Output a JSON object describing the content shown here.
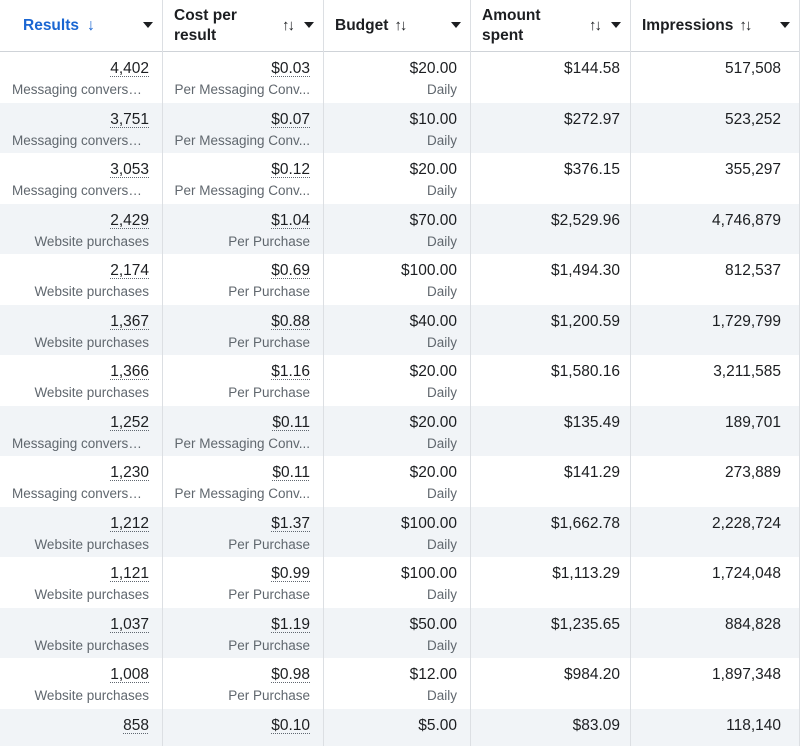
{
  "columns": {
    "results": "Results",
    "results_sort_icon": "↓",
    "cost_per_result_line1": "Cost per",
    "cost_per_result_line2": "result",
    "budget": "Budget",
    "amount_spent_line1": "Amount",
    "amount_spent_line2": "spent",
    "impressions": "Impressions",
    "sort_icon": "↑↓"
  },
  "rows": [
    {
      "results": "4,402",
      "result_type": "Messaging conversat...",
      "cost": "$0.03",
      "cost_type": "Per Messaging Conv...",
      "budget": "$20.00",
      "budget_type": "Daily",
      "amount_spent": "$144.58",
      "impressions": "517,508"
    },
    {
      "results": "3,751",
      "result_type": "Messaging conversat...",
      "cost": "$0.07",
      "cost_type": "Per Messaging Conv...",
      "budget": "$10.00",
      "budget_type": "Daily",
      "amount_spent": "$272.97",
      "impressions": "523,252"
    },
    {
      "results": "3,053",
      "result_type": "Messaging conversat...",
      "cost": "$0.12",
      "cost_type": "Per Messaging Conv...",
      "budget": "$20.00",
      "budget_type": "Daily",
      "amount_spent": "$376.15",
      "impressions": "355,297"
    },
    {
      "results": "2,429",
      "result_type": "Website purchases",
      "cost": "$1.04",
      "cost_type": "Per Purchase",
      "budget": "$70.00",
      "budget_type": "Daily",
      "amount_spent": "$2,529.96",
      "impressions": "4,746,879"
    },
    {
      "results": "2,174",
      "result_type": "Website purchases",
      "cost": "$0.69",
      "cost_type": "Per Purchase",
      "budget": "$100.00",
      "budget_type": "Daily",
      "amount_spent": "$1,494.30",
      "impressions": "812,537"
    },
    {
      "results": "1,367",
      "result_type": "Website purchases",
      "cost": "$0.88",
      "cost_type": "Per Purchase",
      "budget": "$40.00",
      "budget_type": "Daily",
      "amount_spent": "$1,200.59",
      "impressions": "1,729,799"
    },
    {
      "results": "1,366",
      "result_type": "Website purchases",
      "cost": "$1.16",
      "cost_type": "Per Purchase",
      "budget": "$20.00",
      "budget_type": "Daily",
      "amount_spent": "$1,580.16",
      "impressions": "3,211,585"
    },
    {
      "results": "1,252",
      "result_type": "Messaging conversat...",
      "cost": "$0.11",
      "cost_type": "Per Messaging Conv...",
      "budget": "$20.00",
      "budget_type": "Daily",
      "amount_spent": "$135.49",
      "impressions": "189,701"
    },
    {
      "results": "1,230",
      "result_type": "Messaging conversat...",
      "cost": "$0.11",
      "cost_type": "Per Messaging Conv...",
      "budget": "$20.00",
      "budget_type": "Daily",
      "amount_spent": "$141.29",
      "impressions": "273,889"
    },
    {
      "results": "1,212",
      "result_type": "Website purchases",
      "cost": "$1.37",
      "cost_type": "Per Purchase",
      "budget": "$100.00",
      "budget_type": "Daily",
      "amount_spent": "$1,662.78",
      "impressions": "2,228,724"
    },
    {
      "results": "1,121",
      "result_type": "Website purchases",
      "cost": "$0.99",
      "cost_type": "Per Purchase",
      "budget": "$100.00",
      "budget_type": "Daily",
      "amount_spent": "$1,113.29",
      "impressions": "1,724,048"
    },
    {
      "results": "1,037",
      "result_type": "Website purchases",
      "cost": "$1.19",
      "cost_type": "Per Purchase",
      "budget": "$50.00",
      "budget_type": "Daily",
      "amount_spent": "$1,235.65",
      "impressions": "884,828"
    },
    {
      "results": "1,008",
      "result_type": "Website purchases",
      "cost": "$0.98",
      "cost_type": "Per Purchase",
      "budget": "$12.00",
      "budget_type": "Daily",
      "amount_spent": "$984.20",
      "impressions": "1,897,348"
    },
    {
      "results": "858",
      "result_type": "",
      "cost": "$0.10",
      "cost_type": "",
      "budget": "$5.00",
      "budget_type": "",
      "amount_spent": "$83.09",
      "impressions": "118,140"
    }
  ]
}
